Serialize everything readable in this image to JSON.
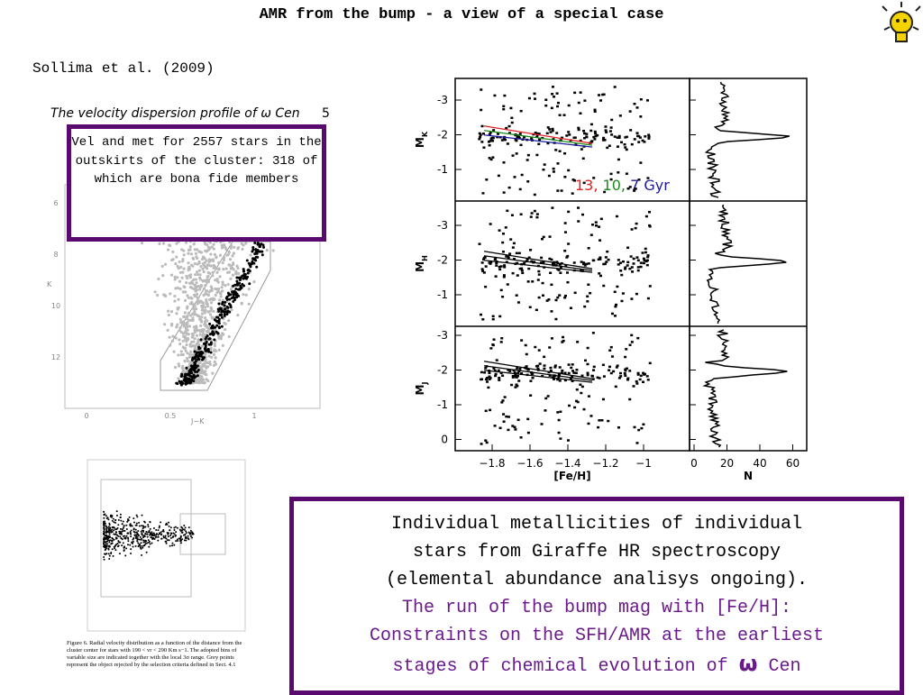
{
  "header": {
    "title": "AMR from the bump - a view of a special case",
    "reference": "Sollima et al. (2009)"
  },
  "figure_left": {
    "caption_title": "The velocity dispersion profile of ω Cen",
    "page_number": "5",
    "y_label": "K",
    "yticks": [
      "6",
      "8",
      "10",
      "12"
    ],
    "x_label": "J−K",
    "xticks": [
      "0",
      "0.5",
      "1"
    ]
  },
  "callout_top": "Vel and met for 2557 stars in the outskirts of the cluster: 318 of which are bona fide members",
  "figure_right": {
    "panels": [
      {
        "y_label": "M",
        "y_sub": "K",
        "yticks": [
          "-3",
          "-2",
          "-1"
        ]
      },
      {
        "y_label": "M",
        "y_sub": "H",
        "yticks": [
          "-3",
          "-2",
          "-1"
        ]
      },
      {
        "y_label": "M",
        "y_sub": "J",
        "yticks": [
          "-3",
          "-2",
          "-1",
          "0"
        ]
      }
    ],
    "legend": [
      {
        "label": "13,",
        "color": "#e02020"
      },
      {
        "label": "10,",
        "color": "#1a8a1a"
      },
      {
        "label": "7 Gyr",
        "color": "#1a1aa0"
      }
    ],
    "x_label": "[Fe/H]",
    "xticks": [
      "−1.8",
      "−1.6",
      "−1.4",
      "−1.2",
      "−1"
    ],
    "hist_x_label": "N",
    "hist_xticks": [
      "0",
      "20",
      "40",
      "60"
    ]
  },
  "figure_bottom": {
    "caption": "Figure 6. Radial velocity distribution as a function of the distance from the cluster center for stars with 190 < vr < 290 Km s−1. The adopted bins of variable size are indicated together with the local 3σ range. Grey points represent the object rejected by the selection criteria defined in Sect. 4.1"
  },
  "callout_bottom": {
    "lines": [
      "Individual metallicities of individual",
      "stars from Giraffe HR spectroscopy",
      "(elemental abundance analisys ongoing)."
    ],
    "purple_lines": [
      "The run of the bump mag with [Fe/H]:",
      "Constraints on the SFH/AMR at the earliest"
    ],
    "last_line_start": "stages of chemical evolution of",
    "symbol": "ω",
    "last_line_end": "Cen"
  }
}
